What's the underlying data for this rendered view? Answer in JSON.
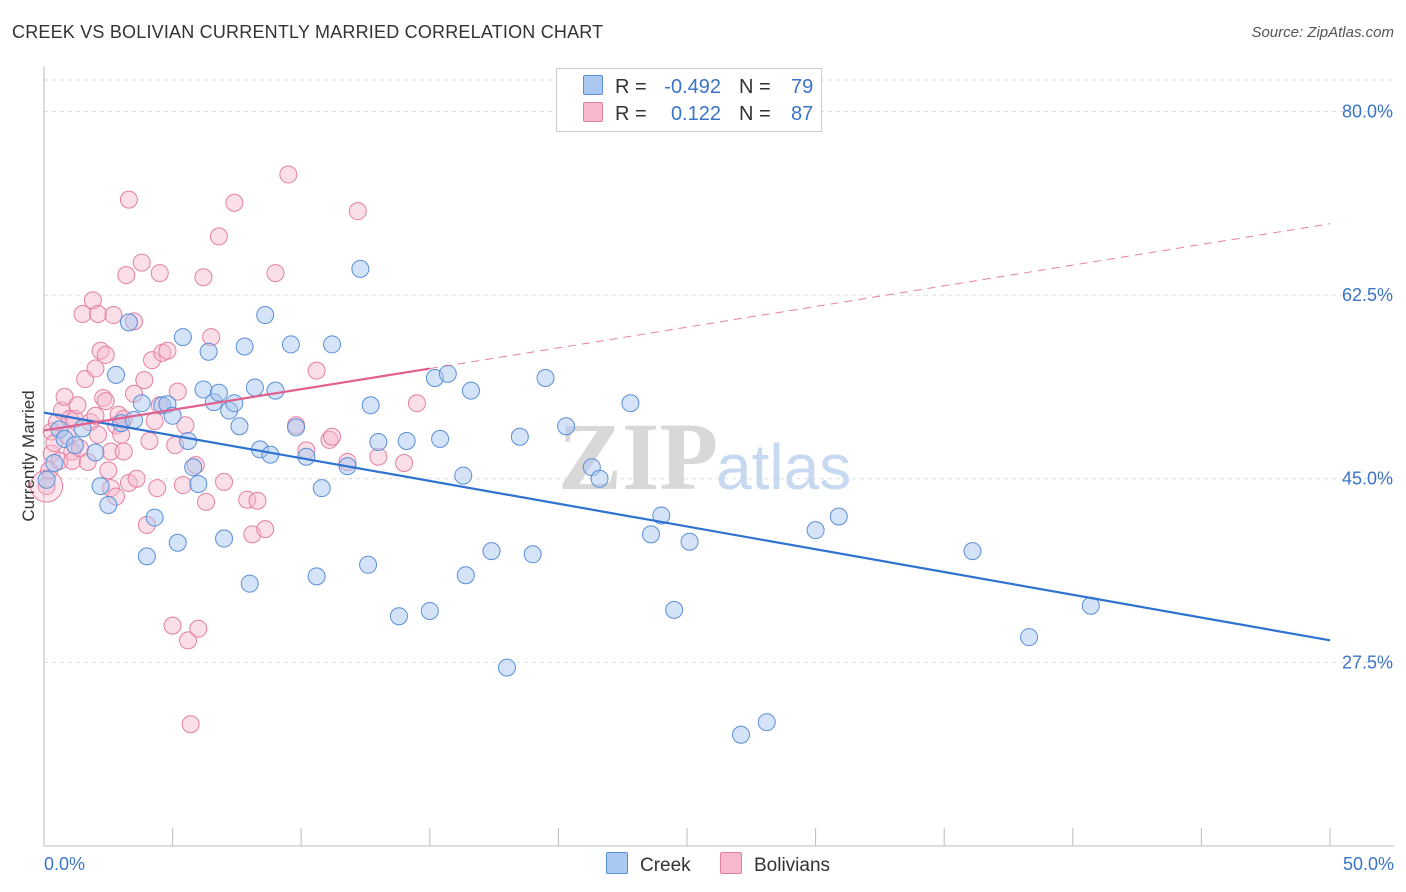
{
  "title": "CREEK VS BOLIVIAN CURRENTLY MARRIED CORRELATION CHART",
  "source": "Source: ZipAtlas.com",
  "watermark": {
    "zip": "ZIP",
    "atlas": "atlas"
  },
  "colors": {
    "creek_fill": "#aac8f0",
    "creek_stroke": "#5a8fd8",
    "creek_line": "#2f72d0",
    "bolivian_fill": "#f7b8cc",
    "bolivian_stroke": "#e47fa0",
    "bolivian_line": "#e0608e",
    "axis_label": "#3a74c8",
    "grid": "#dddddd"
  },
  "legend": {
    "rows": [
      {
        "r_label": "R =",
        "r_value": "-0.492",
        "n_label": "N =",
        "n_value": "79"
      },
      {
        "r_label": "R =",
        "r_value": "0.122",
        "n_label": "N =",
        "n_value": "87"
      }
    ]
  },
  "bottom_legend": {
    "creek": "Creek",
    "bolivians": "Bolivians"
  },
  "chart_data": {
    "type": "scatter",
    "title": "CREEK VS BOLIVIAN CURRENTLY MARRIED CORRELATION CHART",
    "xlabel": "",
    "ylabel": "Currently Married",
    "xlim": [
      0,
      50
    ],
    "ylim": [
      10,
      83
    ],
    "x_tick_labels": [
      "0.0%",
      "50.0%"
    ],
    "y_tick_labels": [
      "80.0%",
      "62.5%",
      "45.0%",
      "27.5%"
    ],
    "y_ticks": [
      80,
      62.5,
      45,
      27.5
    ],
    "grid": true,
    "legend_position": "top-center",
    "series": [
      {
        "name": "Creek",
        "R": -0.492,
        "N": 79,
        "trend": {
          "x": [
            0,
            50
          ],
          "y": [
            51.3,
            29.6
          ]
        },
        "points": [
          [
            0.1,
            44.9
          ],
          [
            0.4,
            46.5
          ],
          [
            0.6,
            49.7
          ],
          [
            0.8,
            48.8
          ],
          [
            1.2,
            48.2
          ],
          [
            1.5,
            49.8
          ],
          [
            2.0,
            47.5
          ],
          [
            2.2,
            44.3
          ],
          [
            2.5,
            42.5
          ],
          [
            2.8,
            54.9
          ],
          [
            3.0,
            50.3
          ],
          [
            3.3,
            59.9
          ],
          [
            3.5,
            50.6
          ],
          [
            3.8,
            52.2
          ],
          [
            4.0,
            37.6
          ],
          [
            4.3,
            41.3
          ],
          [
            4.6,
            52.0
          ],
          [
            4.8,
            52.1
          ],
          [
            5.0,
            51.0
          ],
          [
            5.2,
            38.9
          ],
          [
            5.4,
            58.5
          ],
          [
            5.6,
            48.6
          ],
          [
            5.8,
            46.1
          ],
          [
            6.0,
            44.5
          ],
          [
            6.2,
            53.5
          ],
          [
            6.4,
            57.1
          ],
          [
            6.6,
            52.3
          ],
          [
            6.8,
            53.2
          ],
          [
            7.0,
            39.3
          ],
          [
            7.2,
            51.5
          ],
          [
            7.4,
            52.2
          ],
          [
            7.6,
            50.0
          ],
          [
            7.8,
            57.6
          ],
          [
            8.0,
            35.0
          ],
          [
            8.2,
            53.7
          ],
          [
            8.4,
            47.8
          ],
          [
            8.6,
            60.6
          ],
          [
            8.8,
            47.3
          ],
          [
            9.0,
            53.4
          ],
          [
            9.6,
            57.8
          ],
          [
            9.8,
            49.9
          ],
          [
            10.2,
            47.1
          ],
          [
            10.6,
            35.7
          ],
          [
            10.8,
            44.1
          ],
          [
            11.2,
            57.8
          ],
          [
            11.8,
            46.2
          ],
          [
            12.3,
            65.0
          ],
          [
            12.6,
            36.8
          ],
          [
            12.7,
            52.0
          ],
          [
            13.0,
            48.5
          ],
          [
            13.8,
            31.9
          ],
          [
            14.1,
            48.6
          ],
          [
            15.0,
            32.4
          ],
          [
            15.2,
            54.6
          ],
          [
            15.4,
            48.8
          ],
          [
            15.7,
            55.0
          ],
          [
            16.3,
            45.3
          ],
          [
            16.4,
            35.8
          ],
          [
            16.6,
            53.4
          ],
          [
            17.4,
            38.1
          ],
          [
            18.0,
            27.0
          ],
          [
            18.5,
            49.0
          ],
          [
            19.0,
            37.8
          ],
          [
            19.5,
            54.6
          ],
          [
            20.3,
            50.0
          ],
          [
            21.3,
            46.1
          ],
          [
            21.6,
            45.0
          ],
          [
            22.8,
            52.2
          ],
          [
            23.6,
            39.7
          ],
          [
            24.0,
            41.5
          ],
          [
            24.5,
            32.5
          ],
          [
            25.1,
            39.0
          ],
          [
            27.1,
            20.6
          ],
          [
            28.1,
            21.8
          ],
          [
            30.0,
            40.1
          ],
          [
            30.9,
            41.4
          ],
          [
            36.1,
            38.1
          ],
          [
            38.3,
            29.9
          ],
          [
            40.7,
            32.9
          ]
        ]
      },
      {
        "name": "Bolivians",
        "R": 0.122,
        "N": 87,
        "trend": {
          "solid": {
            "x": [
              0,
              15
            ],
            "y": [
              49.6,
              55.5
            ]
          },
          "dashed": {
            "x": [
              15,
              50
            ],
            "y": [
              55.5,
              69.3
            ]
          }
        },
        "points": [
          [
            0.1,
            44.3
          ],
          [
            0.2,
            45.8
          ],
          [
            0.3,
            47.4
          ],
          [
            0.3,
            49.5
          ],
          [
            0.4,
            48.4
          ],
          [
            0.5,
            50.4
          ],
          [
            0.6,
            46.7
          ],
          [
            0.7,
            51.5
          ],
          [
            0.8,
            52.8
          ],
          [
            0.9,
            49.1
          ],
          [
            1.0,
            50.7
          ],
          [
            1.1,
            47.6
          ],
          [
            1.1,
            46.7
          ],
          [
            1.2,
            50.7
          ],
          [
            1.3,
            52.0
          ],
          [
            1.4,
            47.9
          ],
          [
            1.5,
            60.7
          ],
          [
            1.6,
            54.5
          ],
          [
            1.7,
            46.6
          ],
          [
            1.8,
            50.4
          ],
          [
            1.9,
            62.0
          ],
          [
            2.0,
            51.0
          ],
          [
            2.0,
            55.5
          ],
          [
            2.1,
            60.7
          ],
          [
            2.1,
            49.2
          ],
          [
            2.2,
            57.2
          ],
          [
            2.3,
            52.7
          ],
          [
            2.4,
            56.8
          ],
          [
            2.4,
            52.4
          ],
          [
            2.5,
            45.8
          ],
          [
            2.6,
            44.1
          ],
          [
            2.6,
            47.6
          ],
          [
            2.7,
            60.6
          ],
          [
            2.8,
            43.3
          ],
          [
            2.8,
            50.1
          ],
          [
            2.9,
            51.1
          ],
          [
            3.0,
            49.2
          ],
          [
            3.1,
            47.6
          ],
          [
            3.1,
            50.7
          ],
          [
            3.2,
            64.4
          ],
          [
            3.3,
            44.6
          ],
          [
            3.3,
            71.6
          ],
          [
            3.5,
            53.1
          ],
          [
            3.5,
            60.0
          ],
          [
            3.6,
            45.0
          ],
          [
            3.8,
            65.6
          ],
          [
            3.9,
            54.4
          ],
          [
            4.0,
            40.6
          ],
          [
            4.1,
            48.6
          ],
          [
            4.2,
            56.3
          ],
          [
            4.3,
            50.5
          ],
          [
            4.4,
            44.1
          ],
          [
            4.5,
            64.6
          ],
          [
            4.5,
            52.0
          ],
          [
            4.6,
            57.0
          ],
          [
            4.8,
            57.2
          ],
          [
            5.0,
            31.0
          ],
          [
            5.1,
            48.2
          ],
          [
            5.2,
            53.3
          ],
          [
            5.4,
            44.4
          ],
          [
            5.5,
            50.1
          ],
          [
            5.6,
            29.6
          ],
          [
            5.7,
            21.6
          ],
          [
            5.9,
            46.3
          ],
          [
            6.0,
            30.7
          ],
          [
            6.2,
            64.2
          ],
          [
            6.3,
            42.8
          ],
          [
            6.5,
            58.5
          ],
          [
            6.8,
            68.1
          ],
          [
            7.0,
            44.7
          ],
          [
            7.4,
            71.3
          ],
          [
            7.9,
            43.0
          ],
          [
            8.1,
            39.7
          ],
          [
            8.3,
            42.9
          ],
          [
            8.6,
            40.2
          ],
          [
            9.0,
            64.6
          ],
          [
            9.5,
            74.0
          ],
          [
            9.8,
            50.1
          ],
          [
            10.2,
            47.7
          ],
          [
            10.6,
            55.3
          ],
          [
            11.1,
            48.7
          ],
          [
            11.2,
            49.0
          ],
          [
            11.8,
            46.6
          ],
          [
            12.2,
            70.5
          ],
          [
            13.0,
            47.1
          ],
          [
            14.0,
            46.5
          ],
          [
            14.5,
            52.2
          ]
        ]
      }
    ]
  }
}
